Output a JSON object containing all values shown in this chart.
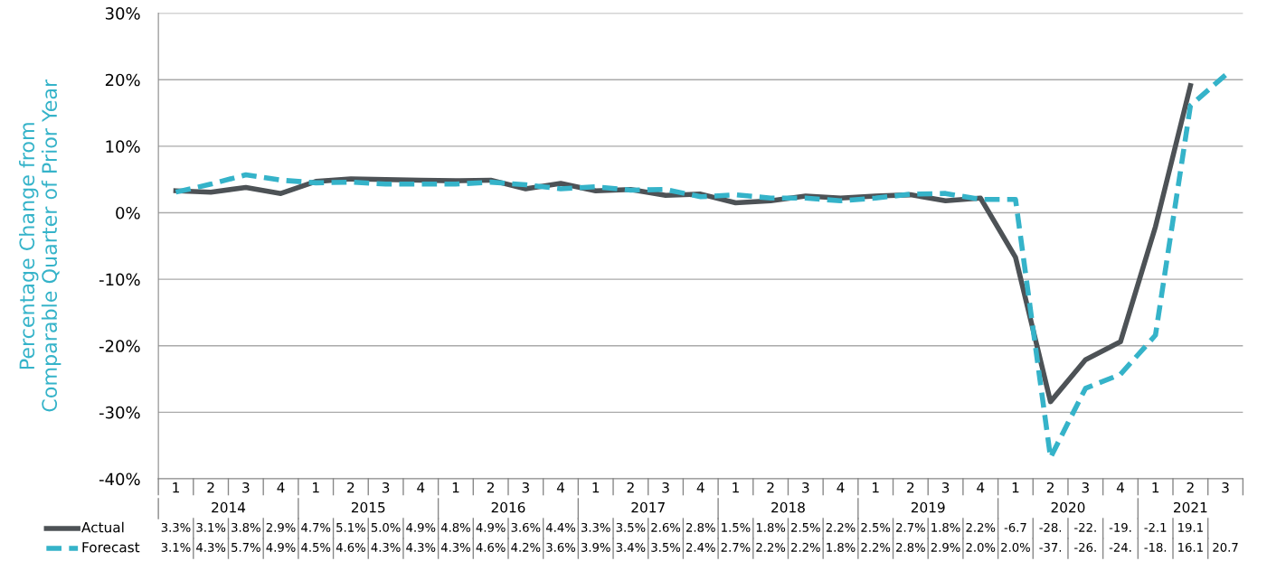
{
  "chart_data": {
    "type": "line",
    "ylabel": "Percentage Change from\nComparable Quarter of Prior Year",
    "categories": [
      "1",
      "2",
      "3",
      "4",
      "1",
      "2",
      "3",
      "4",
      "1",
      "2",
      "3",
      "4",
      "1",
      "2",
      "3",
      "4",
      "1",
      "2",
      "3",
      "4",
      "1",
      "2",
      "3",
      "4",
      "1",
      "2",
      "3",
      "4",
      "1",
      "2",
      "3"
    ],
    "annotations": [
      "2014",
      "2015",
      "2016",
      "2017",
      "2018",
      "2019",
      "2020",
      "2021"
    ],
    "series": [
      {
        "name": "Actual",
        "color": "#4d5256",
        "line_style": "solid",
        "values": [
          3.3,
          3.1,
          3.8,
          2.9,
          4.7,
          5.1,
          5.0,
          4.9,
          4.8,
          4.9,
          3.6,
          4.4,
          3.3,
          3.5,
          2.6,
          2.8,
          1.5,
          1.8,
          2.5,
          2.2,
          2.5,
          2.7,
          1.8,
          2.2,
          -6.7,
          -28.4,
          -22.1,
          -19.4,
          -2.1,
          19.1,
          null
        ],
        "value_labels": [
          "3.3%",
          "3.1%",
          "3.8%",
          "2.9%",
          "4.7%",
          "5.1%",
          "5.0%",
          "4.9%",
          "4.8%",
          "4.9%",
          "3.6%",
          "4.4%",
          "3.3%",
          "3.5%",
          "2.6%",
          "2.8%",
          "1.5%",
          "1.8%",
          "2.5%",
          "2.2%",
          "2.5%",
          "2.7%",
          "1.8%",
          "2.2%",
          "-6.7",
          "-28.",
          "-22.",
          "-19.",
          "-2.1",
          "19.1",
          null
        ]
      },
      {
        "name": "Forecast",
        "color": "#35b3c9",
        "line_style": "dashed",
        "values": [
          3.1,
          4.3,
          5.7,
          4.9,
          4.5,
          4.6,
          4.3,
          4.3,
          4.3,
          4.6,
          4.2,
          3.6,
          3.9,
          3.4,
          3.5,
          2.4,
          2.7,
          2.2,
          2.2,
          1.8,
          2.2,
          2.8,
          2.9,
          2.0,
          2.0,
          -36.8,
          -26.4,
          -24.3,
          -18.4,
          16.1,
          20.7
        ],
        "value_labels": [
          "3.1%",
          "4.3%",
          "5.7%",
          "4.9%",
          "4.5%",
          "4.6%",
          "4.3%",
          "4.3%",
          "4.3%",
          "4.6%",
          "4.2%",
          "3.6%",
          "3.9%",
          "3.4%",
          "3.5%",
          "2.4%",
          "2.7%",
          "2.2%",
          "2.2%",
          "1.8%",
          "2.2%",
          "2.8%",
          "2.9%",
          "2.0%",
          "2.0%",
          "-37.",
          "-26.",
          "-24.",
          "-18.",
          "16.1",
          "20.7"
        ]
      }
    ],
    "ylim": [
      -40,
      30
    ],
    "yticks": [
      {
        "value": -40,
        "label": "-40%"
      },
      {
        "value": -30,
        "label": "-30%"
      },
      {
        "value": -20,
        "label": "-20%"
      },
      {
        "value": -10,
        "label": "-10%"
      },
      {
        "value": 0,
        "label": "0%"
      },
      {
        "value": 10,
        "label": "10%"
      },
      {
        "value": 20,
        "label": "20%"
      },
      {
        "value": 30,
        "label": "30%"
      }
    ],
    "grid": "y",
    "legend": "bottom",
    "marker": "none"
  }
}
